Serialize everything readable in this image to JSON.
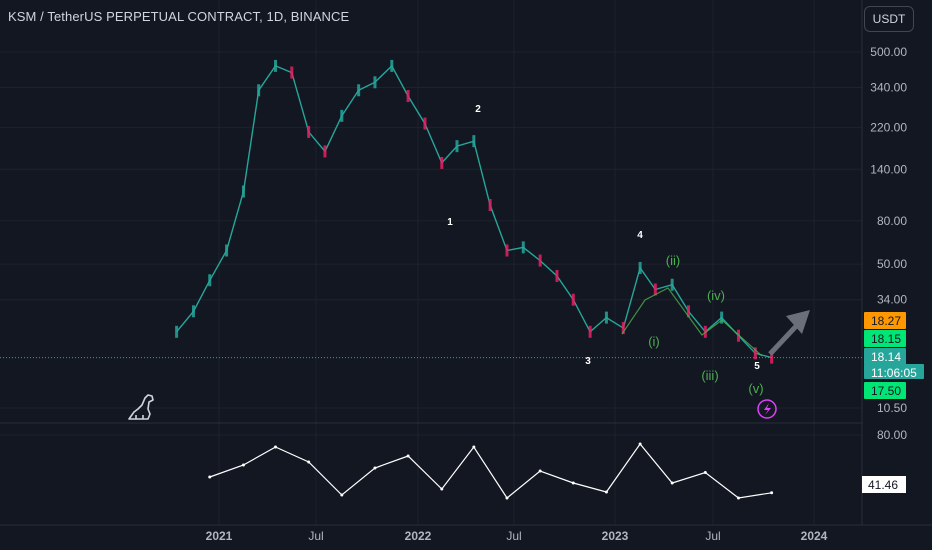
{
  "title": "KSM / TetherUS PERPETUAL CONTRACT, 1D, BINANCE",
  "currency_button": "USDT",
  "icons": [
    "tradingview-dino-icon",
    "lightning-alert-icon",
    "projection-arrow-icon"
  ],
  "colors": {
    "background": "#131722",
    "price_line": "#26a69a",
    "candle_down": "#e91e63",
    "wave_label_green": "#4caf50",
    "oscillator": "#ffffff",
    "alert_circle": "#e040fb"
  },
  "chart_data": [
    {
      "type": "line",
      "scale": "log",
      "series": [
        {
          "x": [
            "2020-10",
            "2020-11",
            "2020-12",
            "2021-01",
            "2021-02",
            "2021-03",
            "2021-04",
            "2021-05",
            "2021-06",
            "2021-07",
            "2021-08",
            "2021-09",
            "2021-10",
            "2021-11",
            "2021-12",
            "2022-01",
            "2022-02",
            "2022-03",
            "2022-04",
            "2022-05",
            "2022-06",
            "2022-07",
            "2022-08",
            "2022-09",
            "2022-10",
            "2022-11",
            "2022-12",
            "2023-01",
            "2023-02",
            "2023-03",
            "2023-04",
            "2023-05",
            "2023-06",
            "2023-07",
            "2023-08",
            "2023-09",
            "2023-10"
          ],
          "values": [
            24,
            30,
            42,
            58,
            110,
            330,
            430,
            400,
            210,
            170,
            250,
            330,
            360,
            430,
            310,
            230,
            150,
            180,
            190,
            95,
            58,
            60,
            52,
            44,
            34,
            24,
            28,
            25,
            48,
            38,
            40,
            30,
            24,
            28,
            23,
            19,
            18.14
          ]
        }
      ],
      "y_ticks": [
        "500.00",
        "340.00",
        "220.00",
        "140.00",
        "80.00",
        "50.00",
        "34.00",
        "10.50"
      ],
      "x_ticks": [
        "2021",
        "Jul",
        "2022",
        "Jul",
        "2023",
        "Jul",
        "2024"
      ],
      "price_labels": [
        {
          "text": "18.27",
          "color": "#ff9800"
        },
        {
          "text": "18.15",
          "color": "#00e676"
        },
        {
          "text": "18.14",
          "color": "#26a69a"
        },
        {
          "text": "11:06:05",
          "color": "#26a69a"
        },
        {
          "text": "17.50",
          "color": "#00e676"
        }
      ],
      "wave_labels": [
        {
          "text": "1",
          "color": "#ffffff"
        },
        {
          "text": "2",
          "color": "#ffffff"
        },
        {
          "text": "3",
          "color": "#ffffff"
        },
        {
          "text": "4",
          "color": "#ffffff"
        },
        {
          "text": "5",
          "color": "#ffffff"
        },
        {
          "text": "(i)",
          "color": "#4caf50"
        },
        {
          "text": "(ii)",
          "color": "#4caf50"
        },
        {
          "text": "(iii)",
          "color": "#4caf50"
        },
        {
          "text": "(iv)",
          "color": "#4caf50"
        },
        {
          "text": "(v)",
          "color": "#4caf50"
        }
      ],
      "grid": true
    },
    {
      "type": "line",
      "y_ticks": [
        "80.00"
      ],
      "current_value_label": "41.46",
      "series": [
        {
          "x": [
            "2020-12",
            "2021-02",
            "2021-04",
            "2021-06",
            "2021-08",
            "2021-10",
            "2021-12",
            "2022-02",
            "2022-04",
            "2022-06",
            "2022-08",
            "2022-10",
            "2022-12",
            "2023-02",
            "2023-04",
            "2023-06",
            "2023-08",
            "2023-10"
          ],
          "values": [
            52,
            60,
            72,
            62,
            40,
            58,
            66,
            44,
            72,
            38,
            56,
            48,
            42,
            74,
            48,
            55,
            38,
            41.46
          ]
        }
      ]
    }
  ]
}
